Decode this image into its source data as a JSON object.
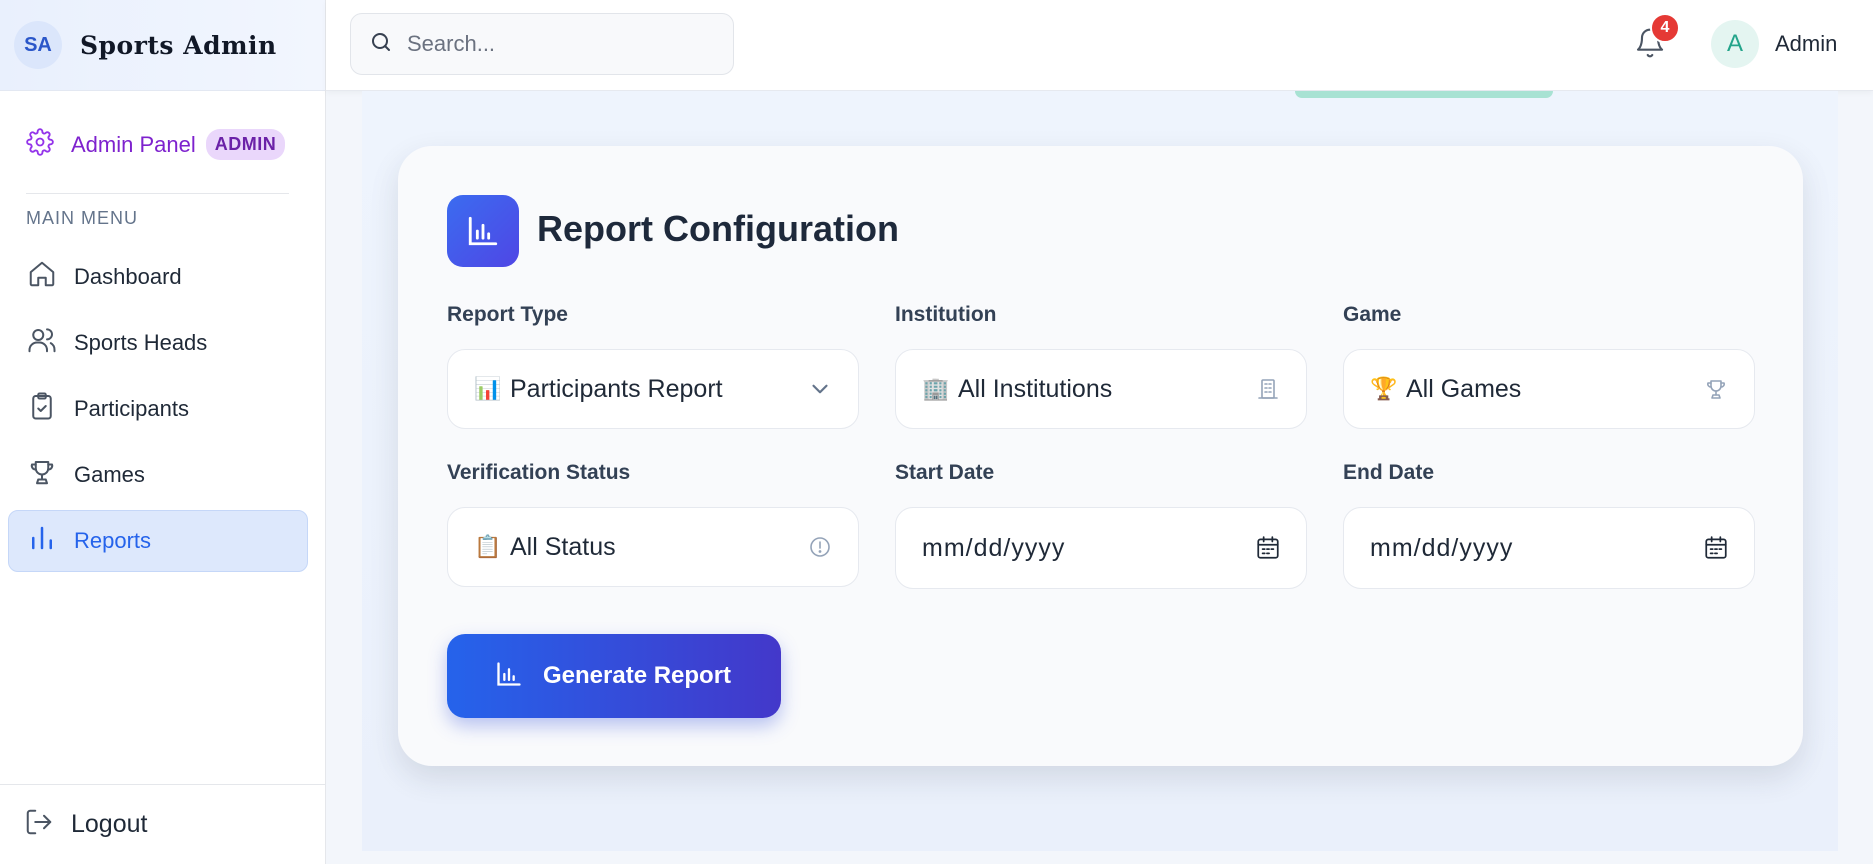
{
  "brand": {
    "initials": "SA",
    "name": "Sports Admin"
  },
  "admin_panel": {
    "label": "Admin Panel",
    "tag": "ADMIN"
  },
  "menu": {
    "title": "MAIN MENU",
    "items": [
      {
        "label": "Dashboard",
        "icon": "home-icon"
      },
      {
        "label": "Sports Heads",
        "icon": "users-icon"
      },
      {
        "label": "Participants",
        "icon": "clipboard-check-icon"
      },
      {
        "label": "Games",
        "icon": "trophy-icon"
      },
      {
        "label": "Reports",
        "icon": "bar-chart-icon",
        "active": true
      }
    ]
  },
  "logout": {
    "label": "Logout"
  },
  "header": {
    "search_placeholder": "Search...",
    "notification_count": "4",
    "avatar_initial": "A",
    "user_name": "Admin"
  },
  "report": {
    "title": "Report Configuration",
    "fields": {
      "report_type": {
        "label": "Report Type",
        "value": "Participants Report",
        "emoji": "📊"
      },
      "institution": {
        "label": "Institution",
        "value": "All Institutions",
        "emoji": "🏢"
      },
      "game": {
        "label": "Game",
        "value": "All Games",
        "emoji": "🏆"
      },
      "verification_status": {
        "label": "Verification Status",
        "value": "All Status",
        "emoji": "📋"
      },
      "start_date": {
        "label": "Start Date",
        "value": "mm/dd/yyyy"
      },
      "end_date": {
        "label": "End Date",
        "value": "mm/dd/yyyy"
      }
    },
    "generate_label": "Generate Report"
  },
  "colors": {
    "primary": "#2563eb",
    "accent_purple": "#7e22ce",
    "badge_red": "#e53935",
    "avatar_teal": "#23a48a"
  }
}
